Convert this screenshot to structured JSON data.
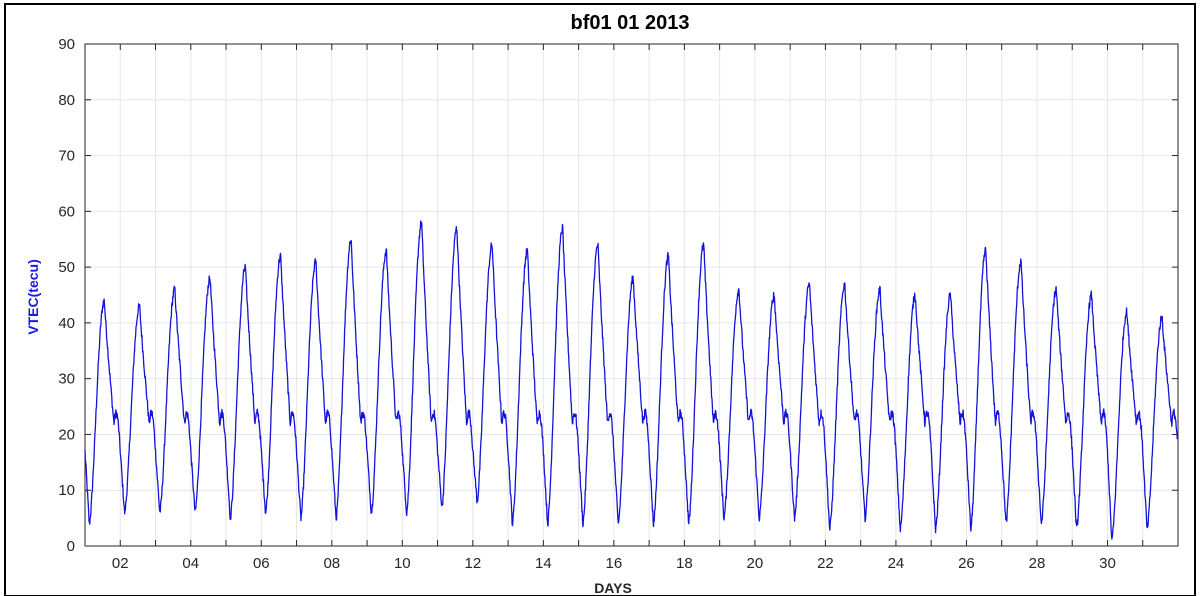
{
  "chart_data": {
    "type": "line",
    "title": "bf01  01 2013",
    "xlabel": "DAYS",
    "ylabel": "VTEC(tecu)",
    "xlim": [
      1,
      32
    ],
    "ylim": [
      0,
      90
    ],
    "x_ticks": [
      2,
      4,
      6,
      8,
      10,
      12,
      14,
      16,
      18,
      20,
      22,
      24,
      26,
      28,
      30
    ],
    "x_tick_labels": [
      "02",
      "04",
      "06",
      "08",
      "10",
      "12",
      "14",
      "16",
      "18",
      "20",
      "22",
      "24",
      "26",
      "28",
      "30"
    ],
    "y_ticks": [
      0,
      10,
      20,
      30,
      40,
      50,
      60,
      70,
      80,
      90
    ],
    "y_tick_labels": [
      "0",
      "10",
      "20",
      "30",
      "40",
      "50",
      "60",
      "70",
      "80",
      "90"
    ],
    "grid": true,
    "series_color": "#1414d8",
    "series": [
      {
        "daily_peaks": [
          44,
          43,
          46,
          48,
          50,
          52,
          51,
          55,
          53,
          58,
          57,
          54,
          53,
          57,
          54,
          48,
          52,
          54,
          46,
          45,
          47,
          47,
          46,
          45,
          45,
          53,
          51,
          46,
          45,
          42,
          41
        ],
        "daily_minima": [
          4,
          6,
          6,
          6,
          5,
          6,
          5,
          5,
          6,
          6,
          7,
          8,
          4,
          4,
          4,
          4,
          4,
          4,
          5,
          5,
          5,
          3,
          5,
          3,
          3,
          3,
          4,
          4,
          3,
          1,
          3
        ]
      }
    ]
  }
}
